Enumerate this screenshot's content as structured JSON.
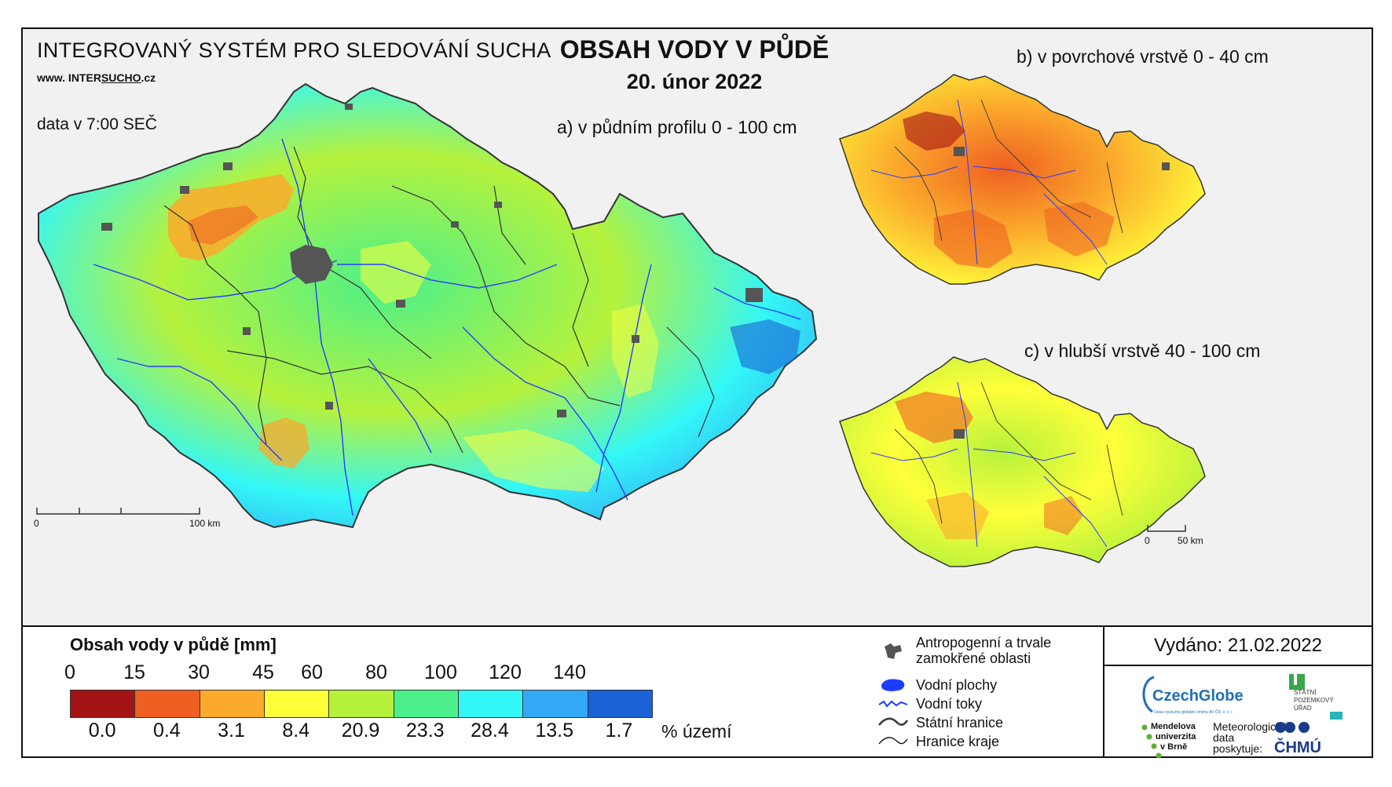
{
  "header": {
    "system_name": "INTEGROVANÝ SYSTÉM PRO SLEDOVÁNÍ SUCHA",
    "website_prefix": "www. INTER",
    "website_underlined": "SUCHO",
    "website_suffix": ".cz",
    "data_time": "data v 7:00 SEČ",
    "main_title": "OBSAH VODY V PŮDĚ",
    "date": "20. únor 2022"
  },
  "maps": {
    "a_label": "a) v půdním profilu 0 - 100 cm",
    "b_label": "b) v povrchové vrstvě 0 - 40 cm",
    "c_label": "c) v hlubší vrstvě 40 - 100 cm",
    "scale_a_start": "0",
    "scale_a_end": "100 km",
    "scale_c_start": "0",
    "scale_c_end": "50 km"
  },
  "legend": {
    "title": "Obsah vody v půdě  [mm]",
    "mm_ticks": [
      "0",
      "15",
      "30",
      "45",
      "60",
      "80",
      "100",
      "120",
      "140"
    ],
    "classes": [
      {
        "color": "#a51414",
        "percent": "0.0"
      },
      {
        "color": "#ef5f22",
        "percent": "0.4"
      },
      {
        "color": "#fbaa2c",
        "percent": "3.1"
      },
      {
        "color": "#ffff3a",
        "percent": "8.4"
      },
      {
        "color": "#b6f23c",
        "percent": "20.9"
      },
      {
        "color": "#4cf08a",
        "percent": "23.3"
      },
      {
        "color": "#33f7f7",
        "percent": "28.4"
      },
      {
        "color": "#33a9f5",
        "percent": "13.5"
      },
      {
        "color": "#1a62d6",
        "percent": "1.7"
      }
    ],
    "percent_unit": "% území"
  },
  "symbols": {
    "anthropogenic": "Antropogenní a trvale zamokřené oblasti",
    "water_bodies": "Vodní plochy",
    "streams": "Vodní toky",
    "state_border": "Státní hranice",
    "region_border": "Hranice kraje"
  },
  "footer": {
    "issued": "Vydáno: 21.02.2022",
    "czechglobe": "CzechGlobe",
    "czechglobe_sub": "Ústav výzkumu globální změny AV ČR, v. v. i.",
    "spu_line1": "STÁTNÍ",
    "spu_line2": "POZEMKOVÝ",
    "spu_line3": "ÚŘAD",
    "mu_line1": "Mendelova",
    "mu_line2": "univerzita",
    "mu_line3": "v Brně",
    "met_line1": "Meteorologická",
    "met_line2": "data",
    "met_line3": "poskytuje:",
    "chmu": "ČHMÚ"
  },
  "colors": {
    "anthropogenic": "#555555",
    "water": "#1a3cff",
    "border": "#333333"
  }
}
